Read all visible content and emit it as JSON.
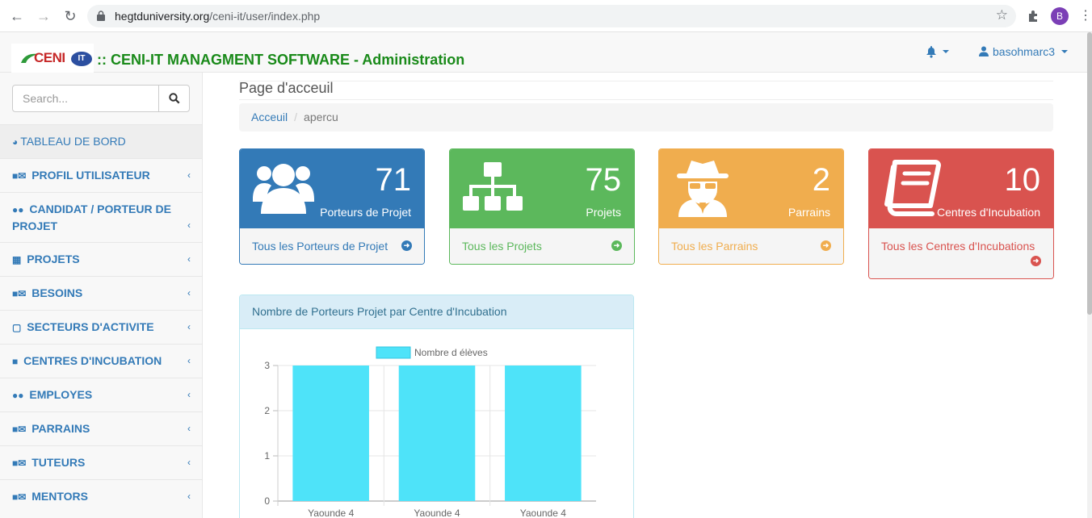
{
  "browser": {
    "url_host": "hegtduniversity.org",
    "url_path": "/ceni-it/user/index.php",
    "profile_initial": "B"
  },
  "header": {
    "logo_text": "CENI",
    "logo_badge": "IT",
    "brand": ":: CENI-IT MANAGMENT SOFTWARE - Administration",
    "user": "basohmarc3"
  },
  "sidebar": {
    "search_placeholder": "Search...",
    "items": [
      {
        "label": "TABLEAU DE BORD",
        "icon": "dashboard-icon"
      },
      {
        "label": "PROFIL UTILISATEUR",
        "icon": "user-secret-envelope-icon"
      },
      {
        "label": "CANDIDAT / PORTEUR DE PROJET",
        "icon": "users-icon"
      },
      {
        "label": "PROJETS",
        "icon": "book-icon"
      },
      {
        "label": "BESOINS",
        "icon": "user-secret-envelope-icon"
      },
      {
        "label": "SECTEURS D'ACTIVITE",
        "icon": "calendar-icon"
      },
      {
        "label": "CENTRES D'INCUBATION",
        "icon": "user-secret-icon"
      },
      {
        "label": "EMPLOYES",
        "icon": "users-icon"
      },
      {
        "label": "PARRAINS",
        "icon": "user-secret-envelope-icon"
      },
      {
        "label": "TUTEURS",
        "icon": "user-secret-envelope-icon"
      },
      {
        "label": "MENTORS",
        "icon": "user-secret-envelope-icon"
      }
    ]
  },
  "main": {
    "page_title": "Page d'acceuil",
    "breadcrumb": {
      "home": "Acceuil",
      "current": "apercu"
    },
    "panels": [
      {
        "count": "71",
        "label": "Porteurs de Projet",
        "link": "Tous les Porteurs de Projet",
        "icon": "users-icon",
        "color": "#337ab7"
      },
      {
        "count": "75",
        "label": "Projets",
        "link": "Tous les Projets",
        "icon": "sitemap-icon",
        "color": "#5cb85c"
      },
      {
        "count": "2",
        "label": "Parrains",
        "link": "Tous les Parrains",
        "icon": "user-secret-icon",
        "color": "#f0ad4e"
      },
      {
        "count": "10",
        "label": "Centres d'Incubation",
        "link": "Tous les Centres d'Incubations",
        "icon": "book-icon",
        "color": "#d9534f"
      }
    ],
    "chart_panel_title": "Nombre de Porteurs Projet par Centre d'Incubation"
  },
  "chart_data": {
    "type": "bar",
    "categories": [
      "Yaounde 4",
      "Yaounde 4",
      "Yaounde 4"
    ],
    "series": [
      {
        "name": "Nombre d élèves",
        "values": [
          3,
          3,
          3
        ],
        "color": "#4ee3f9"
      }
    ],
    "ylim": [
      0,
      3
    ],
    "yticks": [
      0,
      1,
      2,
      3
    ],
    "legend": "top",
    "grid": true
  }
}
